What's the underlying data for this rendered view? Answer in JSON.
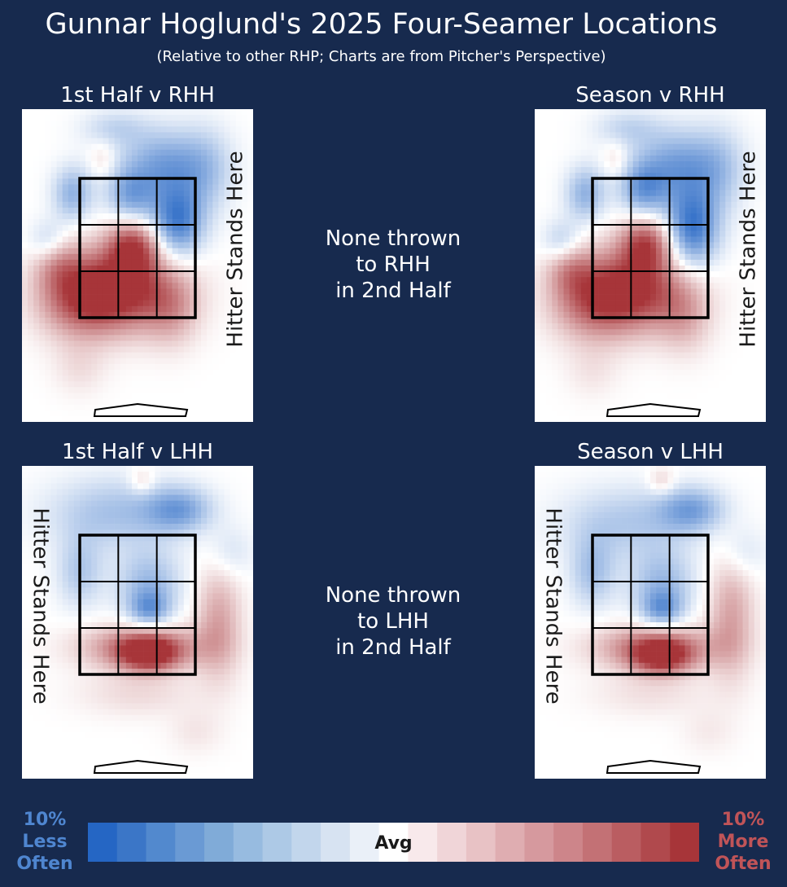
{
  "chart_data": {
    "type": "heatmap",
    "title": "Gunnar Hoglund's 2025 Four-Seamer Locations",
    "subtitle": "(Relative to other RHP; Charts are from Pitcher's Perspective)",
    "panels": [
      {
        "id": "first-half-rhh",
        "title": "1st Half v RHH",
        "hitter_label": "Hitter Stands Here",
        "hitter_side": "right",
        "blobs": [
          {
            "cx": 0.45,
            "cy": 0.58,
            "rx": 0.17,
            "ry": 0.09,
            "v": 0.95
          },
          {
            "cx": 0.48,
            "cy": 0.44,
            "rx": 0.08,
            "ry": 0.06,
            "v": 0.85
          },
          {
            "cx": 0.25,
            "cy": 0.6,
            "rx": 0.13,
            "ry": 0.09,
            "v": 0.7
          },
          {
            "cx": 0.15,
            "cy": 0.48,
            "rx": 0.07,
            "ry": 0.06,
            "v": 0.4
          },
          {
            "cx": 0.65,
            "cy": 0.65,
            "rx": 0.08,
            "ry": 0.08,
            "v": 0.3
          },
          {
            "cx": 0.25,
            "cy": 0.83,
            "rx": 0.08,
            "ry": 0.06,
            "v": 0.15
          },
          {
            "cx": 0.62,
            "cy": 0.18,
            "rx": 0.14,
            "ry": 0.08,
            "v": -0.6
          },
          {
            "cx": 0.67,
            "cy": 0.36,
            "rx": 0.08,
            "ry": 0.08,
            "v": -0.85
          },
          {
            "cx": 0.47,
            "cy": 0.28,
            "rx": 0.07,
            "ry": 0.06,
            "v": -0.5
          },
          {
            "cx": 0.22,
            "cy": 0.27,
            "rx": 0.06,
            "ry": 0.06,
            "v": -0.5
          },
          {
            "cx": 0.12,
            "cy": 0.43,
            "rx": 0.06,
            "ry": 0.05,
            "v": -0.4
          },
          {
            "cx": 0.4,
            "cy": 0.06,
            "rx": 0.1,
            "ry": 0.04,
            "v": -0.25
          },
          {
            "cx": 0.8,
            "cy": 0.2,
            "rx": 0.08,
            "ry": 0.1,
            "v": -0.25
          },
          {
            "cx": 0.35,
            "cy": 0.16,
            "rx": 0.04,
            "ry": 0.04,
            "v": 0.2
          }
        ]
      },
      {
        "id": "season-rhh",
        "title": "Season v RHH",
        "hitter_label": "Hitter Stands Here",
        "hitter_side": "right",
        "blobs": [
          {
            "cx": 0.45,
            "cy": 0.58,
            "rx": 0.16,
            "ry": 0.09,
            "v": 0.9
          },
          {
            "cx": 0.48,
            "cy": 0.43,
            "rx": 0.08,
            "ry": 0.06,
            "v": 0.8
          },
          {
            "cx": 0.25,
            "cy": 0.61,
            "rx": 0.13,
            "ry": 0.09,
            "v": 0.65
          },
          {
            "cx": 0.15,
            "cy": 0.5,
            "rx": 0.07,
            "ry": 0.06,
            "v": 0.4
          },
          {
            "cx": 0.65,
            "cy": 0.67,
            "rx": 0.08,
            "ry": 0.08,
            "v": 0.3
          },
          {
            "cx": 0.25,
            "cy": 0.84,
            "rx": 0.08,
            "ry": 0.06,
            "v": 0.12
          },
          {
            "cx": 0.62,
            "cy": 0.18,
            "rx": 0.14,
            "ry": 0.08,
            "v": -0.6
          },
          {
            "cx": 0.68,
            "cy": 0.38,
            "rx": 0.08,
            "ry": 0.09,
            "v": -0.9
          },
          {
            "cx": 0.47,
            "cy": 0.26,
            "rx": 0.07,
            "ry": 0.06,
            "v": -0.55
          },
          {
            "cx": 0.22,
            "cy": 0.27,
            "rx": 0.06,
            "ry": 0.06,
            "v": -0.5
          },
          {
            "cx": 0.12,
            "cy": 0.43,
            "rx": 0.06,
            "ry": 0.05,
            "v": -0.4
          },
          {
            "cx": 0.4,
            "cy": 0.06,
            "rx": 0.1,
            "ry": 0.04,
            "v": -0.25
          },
          {
            "cx": 0.8,
            "cy": 0.2,
            "rx": 0.08,
            "ry": 0.1,
            "v": -0.25
          },
          {
            "cx": 0.35,
            "cy": 0.16,
            "rx": 0.04,
            "ry": 0.04,
            "v": 0.2
          }
        ]
      },
      {
        "id": "first-half-lhh",
        "title": "1st Half v LHH",
        "hitter_label": "Hitter Stands Here",
        "hitter_side": "left",
        "blobs": [
          {
            "cx": 0.52,
            "cy": 0.58,
            "rx": 0.18,
            "ry": 0.05,
            "v": 0.7
          },
          {
            "cx": 0.55,
            "cy": 0.6,
            "rx": 0.09,
            "ry": 0.04,
            "v": 0.85
          },
          {
            "cx": 0.85,
            "cy": 0.5,
            "rx": 0.07,
            "ry": 0.13,
            "v": 0.45
          },
          {
            "cx": 0.5,
            "cy": 0.73,
            "rx": 0.18,
            "ry": 0.05,
            "v": 0.18
          },
          {
            "cx": 0.75,
            "cy": 0.85,
            "rx": 0.08,
            "ry": 0.05,
            "v": 0.12
          },
          {
            "cx": 0.4,
            "cy": 0.15,
            "rx": 0.2,
            "ry": 0.08,
            "v": -0.4
          },
          {
            "cx": 0.68,
            "cy": 0.14,
            "rx": 0.1,
            "ry": 0.05,
            "v": -0.55
          },
          {
            "cx": 0.55,
            "cy": 0.38,
            "rx": 0.1,
            "ry": 0.08,
            "v": -0.45
          },
          {
            "cx": 0.25,
            "cy": 0.34,
            "rx": 0.07,
            "ry": 0.08,
            "v": -0.35
          },
          {
            "cx": 0.55,
            "cy": 0.46,
            "rx": 0.06,
            "ry": 0.04,
            "v": -0.5
          },
          {
            "cx": 0.9,
            "cy": 0.28,
            "rx": 0.07,
            "ry": 0.06,
            "v": -0.2
          },
          {
            "cx": 0.52,
            "cy": 0.05,
            "rx": 0.04,
            "ry": 0.03,
            "v": 0.25
          }
        ]
      },
      {
        "id": "season-lhh",
        "title": "Season v LHH",
        "hitter_label": "Hitter Stands Here",
        "hitter_side": "left",
        "blobs": [
          {
            "cx": 0.52,
            "cy": 0.58,
            "rx": 0.18,
            "ry": 0.05,
            "v": 0.7
          },
          {
            "cx": 0.55,
            "cy": 0.61,
            "rx": 0.09,
            "ry": 0.04,
            "v": 0.8
          },
          {
            "cx": 0.85,
            "cy": 0.48,
            "rx": 0.07,
            "ry": 0.14,
            "v": 0.45
          },
          {
            "cx": 0.5,
            "cy": 0.73,
            "rx": 0.18,
            "ry": 0.05,
            "v": 0.15
          },
          {
            "cx": 0.75,
            "cy": 0.85,
            "rx": 0.08,
            "ry": 0.05,
            "v": 0.1
          },
          {
            "cx": 0.4,
            "cy": 0.18,
            "rx": 0.2,
            "ry": 0.08,
            "v": -0.35
          },
          {
            "cx": 0.68,
            "cy": 0.14,
            "rx": 0.1,
            "ry": 0.05,
            "v": -0.55
          },
          {
            "cx": 0.55,
            "cy": 0.38,
            "rx": 0.1,
            "ry": 0.08,
            "v": -0.45
          },
          {
            "cx": 0.25,
            "cy": 0.34,
            "rx": 0.07,
            "ry": 0.08,
            "v": -0.4
          },
          {
            "cx": 0.55,
            "cy": 0.46,
            "rx": 0.06,
            "ry": 0.04,
            "v": -0.5
          },
          {
            "cx": 0.9,
            "cy": 0.28,
            "rx": 0.07,
            "ry": 0.06,
            "v": -0.2
          },
          {
            "cx": 0.55,
            "cy": 0.05,
            "rx": 0.04,
            "ry": 0.03,
            "v": 0.25
          }
        ]
      }
    ],
    "empty_messages": {
      "rhh": "None thrown\nto RHH\nin 2nd Half",
      "lhh": "None thrown\nto LHH\nin 2nd Half"
    },
    "colorbar": {
      "min_label": "10%\nLess\nOften",
      "center_label": "Avg",
      "max_label": "10%\nMore\nOften",
      "range": [
        -10,
        10
      ],
      "colors": [
        "#2566c4",
        "#3b76c7",
        "#5289ce",
        "#6a9ad4",
        "#80abd8",
        "#97bbe0",
        "#adc9e6",
        "#c2d6ec",
        "#d7e3f2",
        "#eaf0f8",
        "#ffffff",
        "#f8e9eb",
        "#f0d5d8",
        "#e8c2c5",
        "#dfadb1",
        "#d6999e",
        "#cd858a",
        "#c37175",
        "#ba5d61",
        "#b0494d",
        "#a73539"
      ]
    },
    "colors": {
      "background": "#172a4e",
      "less_often": "#2566c4",
      "more_often": "#a73539",
      "less_label": "#4f86d0",
      "more_label": "#c05458"
    }
  }
}
